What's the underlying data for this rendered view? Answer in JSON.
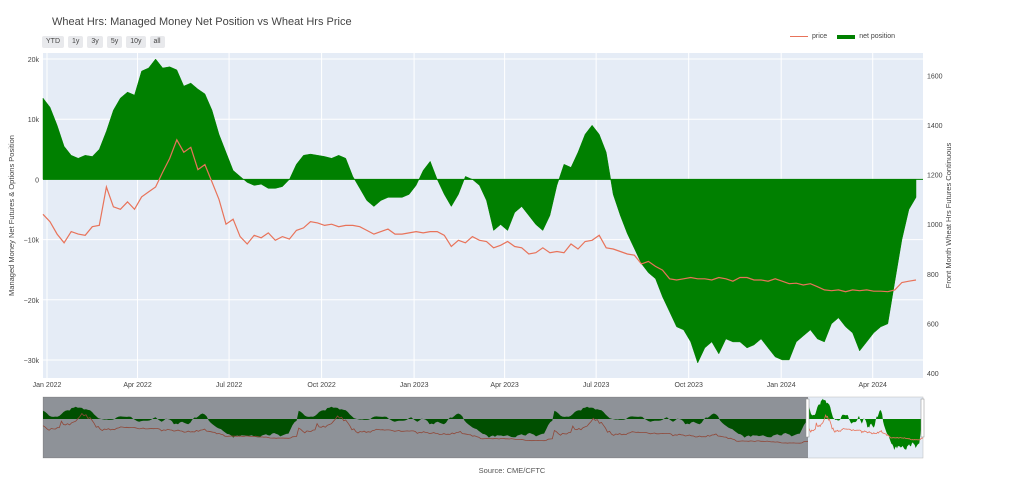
{
  "chart_data": {
    "type": "area",
    "title": "Wheat Hrs: Managed Money Net Position vs Wheat Hrs Price",
    "ylabel": "Managed Money Net Futures & Options Position",
    "y2label": "Front Month Wheat Hrs Futures Continuous",
    "xlim": [
      "2021-12-28",
      "2024-05-21"
    ],
    "ylim": [
      -33000,
      21000
    ],
    "y2lim": [
      380,
      1690
    ],
    "x_ticks": [
      {
        "date": "2022-01-01",
        "label": "Jan 2022"
      },
      {
        "date": "2022-04-01",
        "label": "Apr 2022"
      },
      {
        "date": "2022-07-01",
        "label": "Jul 2022"
      },
      {
        "date": "2022-10-01",
        "label": "Oct 2022"
      },
      {
        "date": "2023-01-01",
        "label": "Jan 2023"
      },
      {
        "date": "2023-04-01",
        "label": "Apr 2023"
      },
      {
        "date": "2023-07-01",
        "label": "Jul 2023"
      },
      {
        "date": "2023-10-01",
        "label": "Oct 2023"
      },
      {
        "date": "2024-01-01",
        "label": "Jan 2024"
      },
      {
        "date": "2024-04-01",
        "label": "Apr 2024"
      }
    ],
    "y_ticks": [
      {
        "value": 20000,
        "label": "20k"
      },
      {
        "value": 10000,
        "label": "10k"
      },
      {
        "value": 0,
        "label": "0"
      },
      {
        "value": -10000,
        "label": "−10k"
      },
      {
        "value": -20000,
        "label": "−20k"
      },
      {
        "value": -30000,
        "label": "−30k"
      }
    ],
    "y2_ticks": [
      {
        "value": 1600,
        "label": "1600"
      },
      {
        "value": 1400,
        "label": "1400"
      },
      {
        "value": 1200,
        "label": "1200"
      },
      {
        "value": 1000,
        "label": "1000"
      },
      {
        "value": 800,
        "label": "800"
      },
      {
        "value": 600,
        "label": "600"
      },
      {
        "value": 400,
        "label": "400"
      }
    ],
    "legend_position": "top-right",
    "grid": true,
    "series": [
      {
        "name": "net position",
        "kind": "area",
        "axis": "y",
        "color": "#008000",
        "points": [
          [
            "2021-12-28",
            13500
          ],
          [
            "2022-01-04",
            12000
          ],
          [
            "2022-01-11",
            9000
          ],
          [
            "2022-01-18",
            5500
          ],
          [
            "2022-01-25",
            4000
          ],
          [
            "2022-02-01",
            3500
          ],
          [
            "2022-02-08",
            4000
          ],
          [
            "2022-02-15",
            3800
          ],
          [
            "2022-02-22",
            5000
          ],
          [
            "2022-03-01",
            8000
          ],
          [
            "2022-03-08",
            11500
          ],
          [
            "2022-03-15",
            13500
          ],
          [
            "2022-03-22",
            14500
          ],
          [
            "2022-03-29",
            14000
          ],
          [
            "2022-04-05",
            18000
          ],
          [
            "2022-04-12",
            18500
          ],
          [
            "2022-04-19",
            20000
          ],
          [
            "2022-04-26",
            18500
          ],
          [
            "2022-05-03",
            18700
          ],
          [
            "2022-05-10",
            18200
          ],
          [
            "2022-05-17",
            15500
          ],
          [
            "2022-05-24",
            16000
          ],
          [
            "2022-05-31",
            15000
          ],
          [
            "2022-06-07",
            14200
          ],
          [
            "2022-06-14",
            11500
          ],
          [
            "2022-06-21",
            7500
          ],
          [
            "2022-06-28",
            4500
          ],
          [
            "2022-07-05",
            1500
          ],
          [
            "2022-07-12",
            500
          ],
          [
            "2022-07-19",
            -500
          ],
          [
            "2022-07-26",
            -1000
          ],
          [
            "2022-08-02",
            -800
          ],
          [
            "2022-08-09",
            -1500
          ],
          [
            "2022-08-16",
            -1500
          ],
          [
            "2022-08-23",
            -1200
          ],
          [
            "2022-08-30",
            0
          ],
          [
            "2022-09-06",
            2500
          ],
          [
            "2022-09-13",
            4000
          ],
          [
            "2022-09-20",
            4200
          ],
          [
            "2022-09-27",
            4000
          ],
          [
            "2022-10-04",
            3800
          ],
          [
            "2022-10-11",
            3500
          ],
          [
            "2022-10-18",
            4000
          ],
          [
            "2022-10-25",
            3500
          ],
          [
            "2022-11-01",
            500
          ],
          [
            "2022-11-08",
            -1500
          ],
          [
            "2022-11-15",
            -3500
          ],
          [
            "2022-11-22",
            -4500
          ],
          [
            "2022-11-29",
            -3500
          ],
          [
            "2022-12-06",
            -3000
          ],
          [
            "2022-12-13",
            -3000
          ],
          [
            "2022-12-20",
            -3000
          ],
          [
            "2022-12-27",
            -2500
          ],
          [
            "2023-01-03",
            -1000
          ],
          [
            "2023-01-10",
            1500
          ],
          [
            "2023-01-17",
            3000
          ],
          [
            "2023-01-24",
            0
          ],
          [
            "2023-01-31",
            -2500
          ],
          [
            "2023-02-07",
            -4500
          ],
          [
            "2023-02-14",
            -2500
          ],
          [
            "2023-02-21",
            500
          ],
          [
            "2023-02-28",
            0
          ],
          [
            "2023-03-07",
            -1000
          ],
          [
            "2023-03-14",
            -3500
          ],
          [
            "2023-03-21",
            -8500
          ],
          [
            "2023-03-28",
            -7500
          ],
          [
            "2023-04-04",
            -8500
          ],
          [
            "2023-04-11",
            -5500
          ],
          [
            "2023-04-18",
            -4500
          ],
          [
            "2023-04-25",
            -6000
          ],
          [
            "2023-05-02",
            -7500
          ],
          [
            "2023-05-09",
            -8500
          ],
          [
            "2023-05-16",
            -6000
          ],
          [
            "2023-05-23",
            -1000
          ],
          [
            "2023-05-30",
            2500
          ],
          [
            "2023-06-06",
            2000
          ],
          [
            "2023-06-13",
            4500
          ],
          [
            "2023-06-20",
            7500
          ],
          [
            "2023-06-27",
            9000
          ],
          [
            "2023-07-04",
            7500
          ],
          [
            "2023-07-11",
            4500
          ],
          [
            "2023-07-18",
            -2500
          ],
          [
            "2023-07-25",
            -6000
          ],
          [
            "2023-08-01",
            -9000
          ],
          [
            "2023-08-08",
            -11500
          ],
          [
            "2023-08-15",
            -14000
          ],
          [
            "2023-08-22",
            -15500
          ],
          [
            "2023-08-29",
            -16500
          ],
          [
            "2023-09-05",
            -19500
          ],
          [
            "2023-09-12",
            -22000
          ],
          [
            "2023-09-19",
            -24500
          ],
          [
            "2023-09-26",
            -25000
          ],
          [
            "2023-10-03",
            -27000
          ],
          [
            "2023-10-10",
            -30500
          ],
          [
            "2023-10-17",
            -28000
          ],
          [
            "2023-10-24",
            -27000
          ],
          [
            "2023-10-31",
            -29000
          ],
          [
            "2023-11-07",
            -26500
          ],
          [
            "2023-11-14",
            -27000
          ],
          [
            "2023-11-21",
            -27000
          ],
          [
            "2023-11-28",
            -28000
          ],
          [
            "2023-12-05",
            -27500
          ],
          [
            "2023-12-12",
            -26500
          ],
          [
            "2023-12-19",
            -28000
          ],
          [
            "2023-12-26",
            -29500
          ],
          [
            "2024-01-02",
            -30000
          ],
          [
            "2024-01-09",
            -30000
          ],
          [
            "2024-01-16",
            -27000
          ],
          [
            "2024-01-23",
            -26000
          ],
          [
            "2024-01-30",
            -25000
          ],
          [
            "2024-02-06",
            -26500
          ],
          [
            "2024-02-13",
            -27000
          ],
          [
            "2024-02-20",
            -24000
          ],
          [
            "2024-02-27",
            -23000
          ],
          [
            "2024-03-05",
            -24500
          ],
          [
            "2024-03-12",
            -25500
          ],
          [
            "2024-03-19",
            -28500
          ],
          [
            "2024-03-26",
            -27000
          ],
          [
            "2024-04-02",
            -25500
          ],
          [
            "2024-04-09",
            -24500
          ],
          [
            "2024-04-16",
            -24000
          ],
          [
            "2024-04-23",
            -17000
          ],
          [
            "2024-04-30",
            -10000
          ],
          [
            "2024-05-07",
            -5000
          ],
          [
            "2024-05-14",
            -3000
          ]
        ]
      },
      {
        "name": "price",
        "kind": "line",
        "axis": "y2",
        "color": "#e8735a",
        "points": [
          [
            "2021-12-28",
            1040
          ],
          [
            "2022-01-04",
            1010
          ],
          [
            "2022-01-11",
            960
          ],
          [
            "2022-01-18",
            925
          ],
          [
            "2022-01-25",
            970
          ],
          [
            "2022-02-01",
            960
          ],
          [
            "2022-02-08",
            955
          ],
          [
            "2022-02-15",
            990
          ],
          [
            "2022-02-22",
            995
          ],
          [
            "2022-03-01",
            1150
          ],
          [
            "2022-03-08",
            1070
          ],
          [
            "2022-03-15",
            1060
          ],
          [
            "2022-03-22",
            1090
          ],
          [
            "2022-03-29",
            1060
          ],
          [
            "2022-04-05",
            1110
          ],
          [
            "2022-04-12",
            1130
          ],
          [
            "2022-04-19",
            1150
          ],
          [
            "2022-04-26",
            1210
          ],
          [
            "2022-05-03",
            1265
          ],
          [
            "2022-05-10",
            1340
          ],
          [
            "2022-05-17",
            1290
          ],
          [
            "2022-05-24",
            1310
          ],
          [
            "2022-05-31",
            1220
          ],
          [
            "2022-06-07",
            1240
          ],
          [
            "2022-06-14",
            1170
          ],
          [
            "2022-06-21",
            1100
          ],
          [
            "2022-06-28",
            1000
          ],
          [
            "2022-07-05",
            1020
          ],
          [
            "2022-07-12",
            950
          ],
          [
            "2022-07-19",
            920
          ],
          [
            "2022-07-26",
            955
          ],
          [
            "2022-08-02",
            945
          ],
          [
            "2022-08-09",
            965
          ],
          [
            "2022-08-16",
            935
          ],
          [
            "2022-08-23",
            950
          ],
          [
            "2022-08-30",
            940
          ],
          [
            "2022-09-06",
            975
          ],
          [
            "2022-09-13",
            985
          ],
          [
            "2022-09-20",
            1010
          ],
          [
            "2022-09-27",
            1005
          ],
          [
            "2022-10-04",
            995
          ],
          [
            "2022-10-11",
            1000
          ],
          [
            "2022-10-18",
            990
          ],
          [
            "2022-10-25",
            995
          ],
          [
            "2022-11-01",
            995
          ],
          [
            "2022-11-08",
            990
          ],
          [
            "2022-11-15",
            975
          ],
          [
            "2022-11-22",
            960
          ],
          [
            "2022-11-29",
            970
          ],
          [
            "2022-12-06",
            980
          ],
          [
            "2022-12-13",
            960
          ],
          [
            "2022-12-20",
            960
          ],
          [
            "2022-12-27",
            965
          ],
          [
            "2023-01-03",
            970
          ],
          [
            "2023-01-10",
            965
          ],
          [
            "2023-01-17",
            970
          ],
          [
            "2023-01-24",
            970
          ],
          [
            "2023-01-31",
            955
          ],
          [
            "2023-02-07",
            910
          ],
          [
            "2023-02-14",
            935
          ],
          [
            "2023-02-21",
            925
          ],
          [
            "2023-02-28",
            950
          ],
          [
            "2023-03-07",
            935
          ],
          [
            "2023-03-14",
            930
          ],
          [
            "2023-03-21",
            905
          ],
          [
            "2023-03-28",
            915
          ],
          [
            "2023-04-04",
            930
          ],
          [
            "2023-04-11",
            910
          ],
          [
            "2023-04-18",
            905
          ],
          [
            "2023-04-25",
            880
          ],
          [
            "2023-05-02",
            885
          ],
          [
            "2023-05-09",
            905
          ],
          [
            "2023-05-16",
            885
          ],
          [
            "2023-05-23",
            890
          ],
          [
            "2023-05-30",
            885
          ],
          [
            "2023-06-06",
            920
          ],
          [
            "2023-06-13",
            900
          ],
          [
            "2023-06-20",
            930
          ],
          [
            "2023-06-27",
            935
          ],
          [
            "2023-07-04",
            955
          ],
          [
            "2023-07-11",
            905
          ],
          [
            "2023-07-18",
            900
          ],
          [
            "2023-07-25",
            890
          ],
          [
            "2023-08-01",
            880
          ],
          [
            "2023-08-08",
            875
          ],
          [
            "2023-08-15",
            840
          ],
          [
            "2023-08-22",
            850
          ],
          [
            "2023-08-29",
            830
          ],
          [
            "2023-09-05",
            815
          ],
          [
            "2023-09-12",
            780
          ],
          [
            "2023-09-19",
            775
          ],
          [
            "2023-09-26",
            780
          ],
          [
            "2023-10-03",
            785
          ],
          [
            "2023-10-10",
            780
          ],
          [
            "2023-10-17",
            780
          ],
          [
            "2023-10-24",
            775
          ],
          [
            "2023-10-31",
            785
          ],
          [
            "2023-11-07",
            780
          ],
          [
            "2023-11-14",
            770
          ],
          [
            "2023-11-21",
            785
          ],
          [
            "2023-11-28",
            785
          ],
          [
            "2023-12-05",
            775
          ],
          [
            "2023-12-12",
            775
          ],
          [
            "2023-12-19",
            770
          ],
          [
            "2023-12-26",
            780
          ],
          [
            "2024-01-02",
            770
          ],
          [
            "2024-01-09",
            760
          ],
          [
            "2024-01-16",
            762
          ],
          [
            "2024-01-23",
            755
          ],
          [
            "2024-01-30",
            760
          ],
          [
            "2024-02-06",
            748
          ],
          [
            "2024-02-13",
            735
          ],
          [
            "2024-02-20",
            732
          ],
          [
            "2024-02-27",
            735
          ],
          [
            "2024-03-05",
            728
          ],
          [
            "2024-03-12",
            735
          ],
          [
            "2024-03-19",
            732
          ],
          [
            "2024-03-26",
            735
          ],
          [
            "2024-04-02",
            730
          ],
          [
            "2024-04-09",
            730
          ],
          [
            "2024-04-16",
            728
          ],
          [
            "2024-04-23",
            735
          ],
          [
            "2024-04-30",
            765
          ],
          [
            "2024-05-07",
            770
          ],
          [
            "2024-05-14",
            775
          ]
        ]
      }
    ],
    "range_buttons": [
      "YTD",
      "1y",
      "3y",
      "5y",
      "10y",
      "all"
    ],
    "source": "Source: CME/CFTC"
  }
}
